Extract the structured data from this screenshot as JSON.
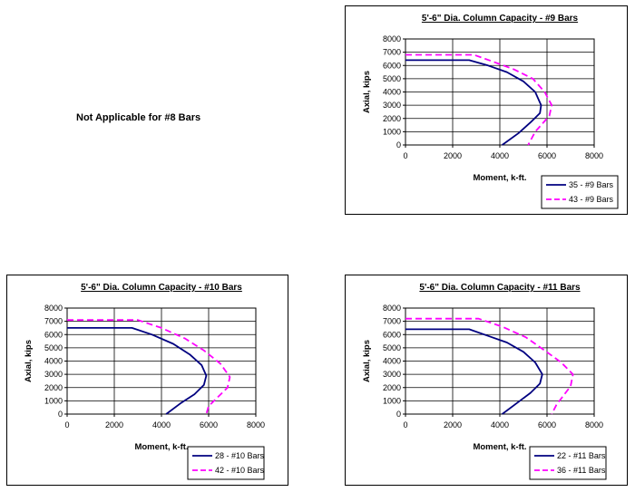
{
  "note": "Not Applicable for #8 Bars",
  "colors": {
    "series1": "#000080",
    "series2": "#ff00ff",
    "grid": "#000000",
    "plot_bg": "#ffffff"
  },
  "chart_data": [
    {
      "type": "line",
      "title": "5'-6\" Dia. Column Capacity - #9 Bars",
      "xlabel": "Moment, k-ft.",
      "ylabel": "Axial, kips",
      "xlim": [
        0,
        8000
      ],
      "ylim": [
        0,
        8000
      ],
      "xticks": [
        0,
        2000,
        4000,
        6000,
        8000
      ],
      "yticks": [
        0,
        1000,
        2000,
        3000,
        4000,
        5000,
        6000,
        7000,
        8000
      ],
      "xtick_labels": [
        "0",
        "2000",
        "4000",
        "6000",
        "8000"
      ],
      "ytick_labels": [
        "0",
        "1000",
        "2000",
        "3000",
        "4000",
        "5000",
        "6000",
        "7000",
        "8000"
      ],
      "grid": true,
      "legend": "bottom-right",
      "series": [
        {
          "name": "35 - #9 Bars",
          "style": "solid",
          "x": [
            0,
            2700,
            3500,
            4300,
            5000,
            5500,
            5750,
            5700,
            5300,
            4800,
            4100
          ],
          "y": [
            6400,
            6400,
            6000,
            5500,
            4800,
            4000,
            3000,
            2400,
            1700,
            900,
            0
          ]
        },
        {
          "name": "43 - #9 Bars",
          "style": "dashed",
          "x": [
            0,
            2900,
            3700,
            4600,
            5400,
            5900,
            6200,
            6100,
            5800,
            5500,
            5200
          ],
          "y": [
            6800,
            6800,
            6300,
            5700,
            5000,
            4000,
            3000,
            2200,
            1600,
            1000,
            0
          ]
        }
      ]
    },
    {
      "type": "line",
      "title": "5'-6\" Dia. Column Capacity - #10 Bars",
      "xlabel": "Moment, k-ft.",
      "ylabel": "Axial, kips",
      "xlim": [
        0,
        8000
      ],
      "ylim": [
        0,
        8000
      ],
      "xticks": [
        0,
        2000,
        4000,
        6000,
        8000
      ],
      "yticks": [
        0,
        1000,
        2000,
        3000,
        4000,
        5000,
        6000,
        7000,
        8000
      ],
      "xtick_labels": [
        "0",
        "2000",
        "4000",
        "6000",
        "8000"
      ],
      "ytick_labels": [
        "0",
        "1000",
        "2000",
        "3000",
        "4000",
        "5000",
        "6000",
        "7000",
        "8000"
      ],
      "grid": true,
      "legend": "bottom-right",
      "series": [
        {
          "name": "28 - #10 Bars",
          "style": "solid",
          "x": [
            0,
            2750,
            3600,
            4500,
            5200,
            5700,
            5900,
            5800,
            5400,
            4800,
            4200
          ],
          "y": [
            6500,
            6500,
            6000,
            5300,
            4500,
            3700,
            2900,
            2200,
            1500,
            800,
            0
          ]
        },
        {
          "name": "42 - #10 Bars",
          "style": "dashed",
          "x": [
            0,
            3000,
            4000,
            5000,
            5800,
            6500,
            6900,
            6800,
            6400,
            6000,
            5900
          ],
          "y": [
            7100,
            7100,
            6500,
            5700,
            4800,
            3800,
            2800,
            2000,
            1300,
            600,
            0
          ]
        }
      ]
    },
    {
      "type": "line",
      "title": "5'-6\" Dia. Column Capacity - #11 Bars",
      "xlabel": "Moment, k-ft.",
      "ylabel": "Axial, kips",
      "xlim": [
        0,
        8000
      ],
      "ylim": [
        0,
        8000
      ],
      "xticks": [
        0,
        2000,
        4000,
        6000,
        8000
      ],
      "yticks": [
        0,
        1000,
        2000,
        3000,
        4000,
        5000,
        6000,
        7000,
        8000
      ],
      "xtick_labels": [
        "0",
        "2000",
        "4000",
        "6000",
        "8000"
      ],
      "ytick_labels": [
        "0",
        "1000",
        "2000",
        "3000",
        "4000",
        "5000",
        "6000",
        "7000",
        "8000"
      ],
      "grid": true,
      "legend": "bottom-right",
      "series": [
        {
          "name": "22 - #11 Bars",
          "style": "solid",
          "x": [
            0,
            2700,
            3500,
            4300,
            5000,
            5500,
            5800,
            5700,
            5300,
            4700,
            4100
          ],
          "y": [
            6400,
            6400,
            5900,
            5400,
            4700,
            3900,
            3000,
            2300,
            1600,
            800,
            0
          ]
        },
        {
          "name": "36 - #11 Bars",
          "style": "dashed",
          "x": [
            0,
            3100,
            4100,
            5100,
            5900,
            6600,
            7100,
            7000,
            6700,
            6400,
            6200
          ],
          "y": [
            7200,
            7200,
            6600,
            5800,
            4800,
            3900,
            3000,
            2100,
            1400,
            700,
            0
          ]
        }
      ]
    }
  ]
}
